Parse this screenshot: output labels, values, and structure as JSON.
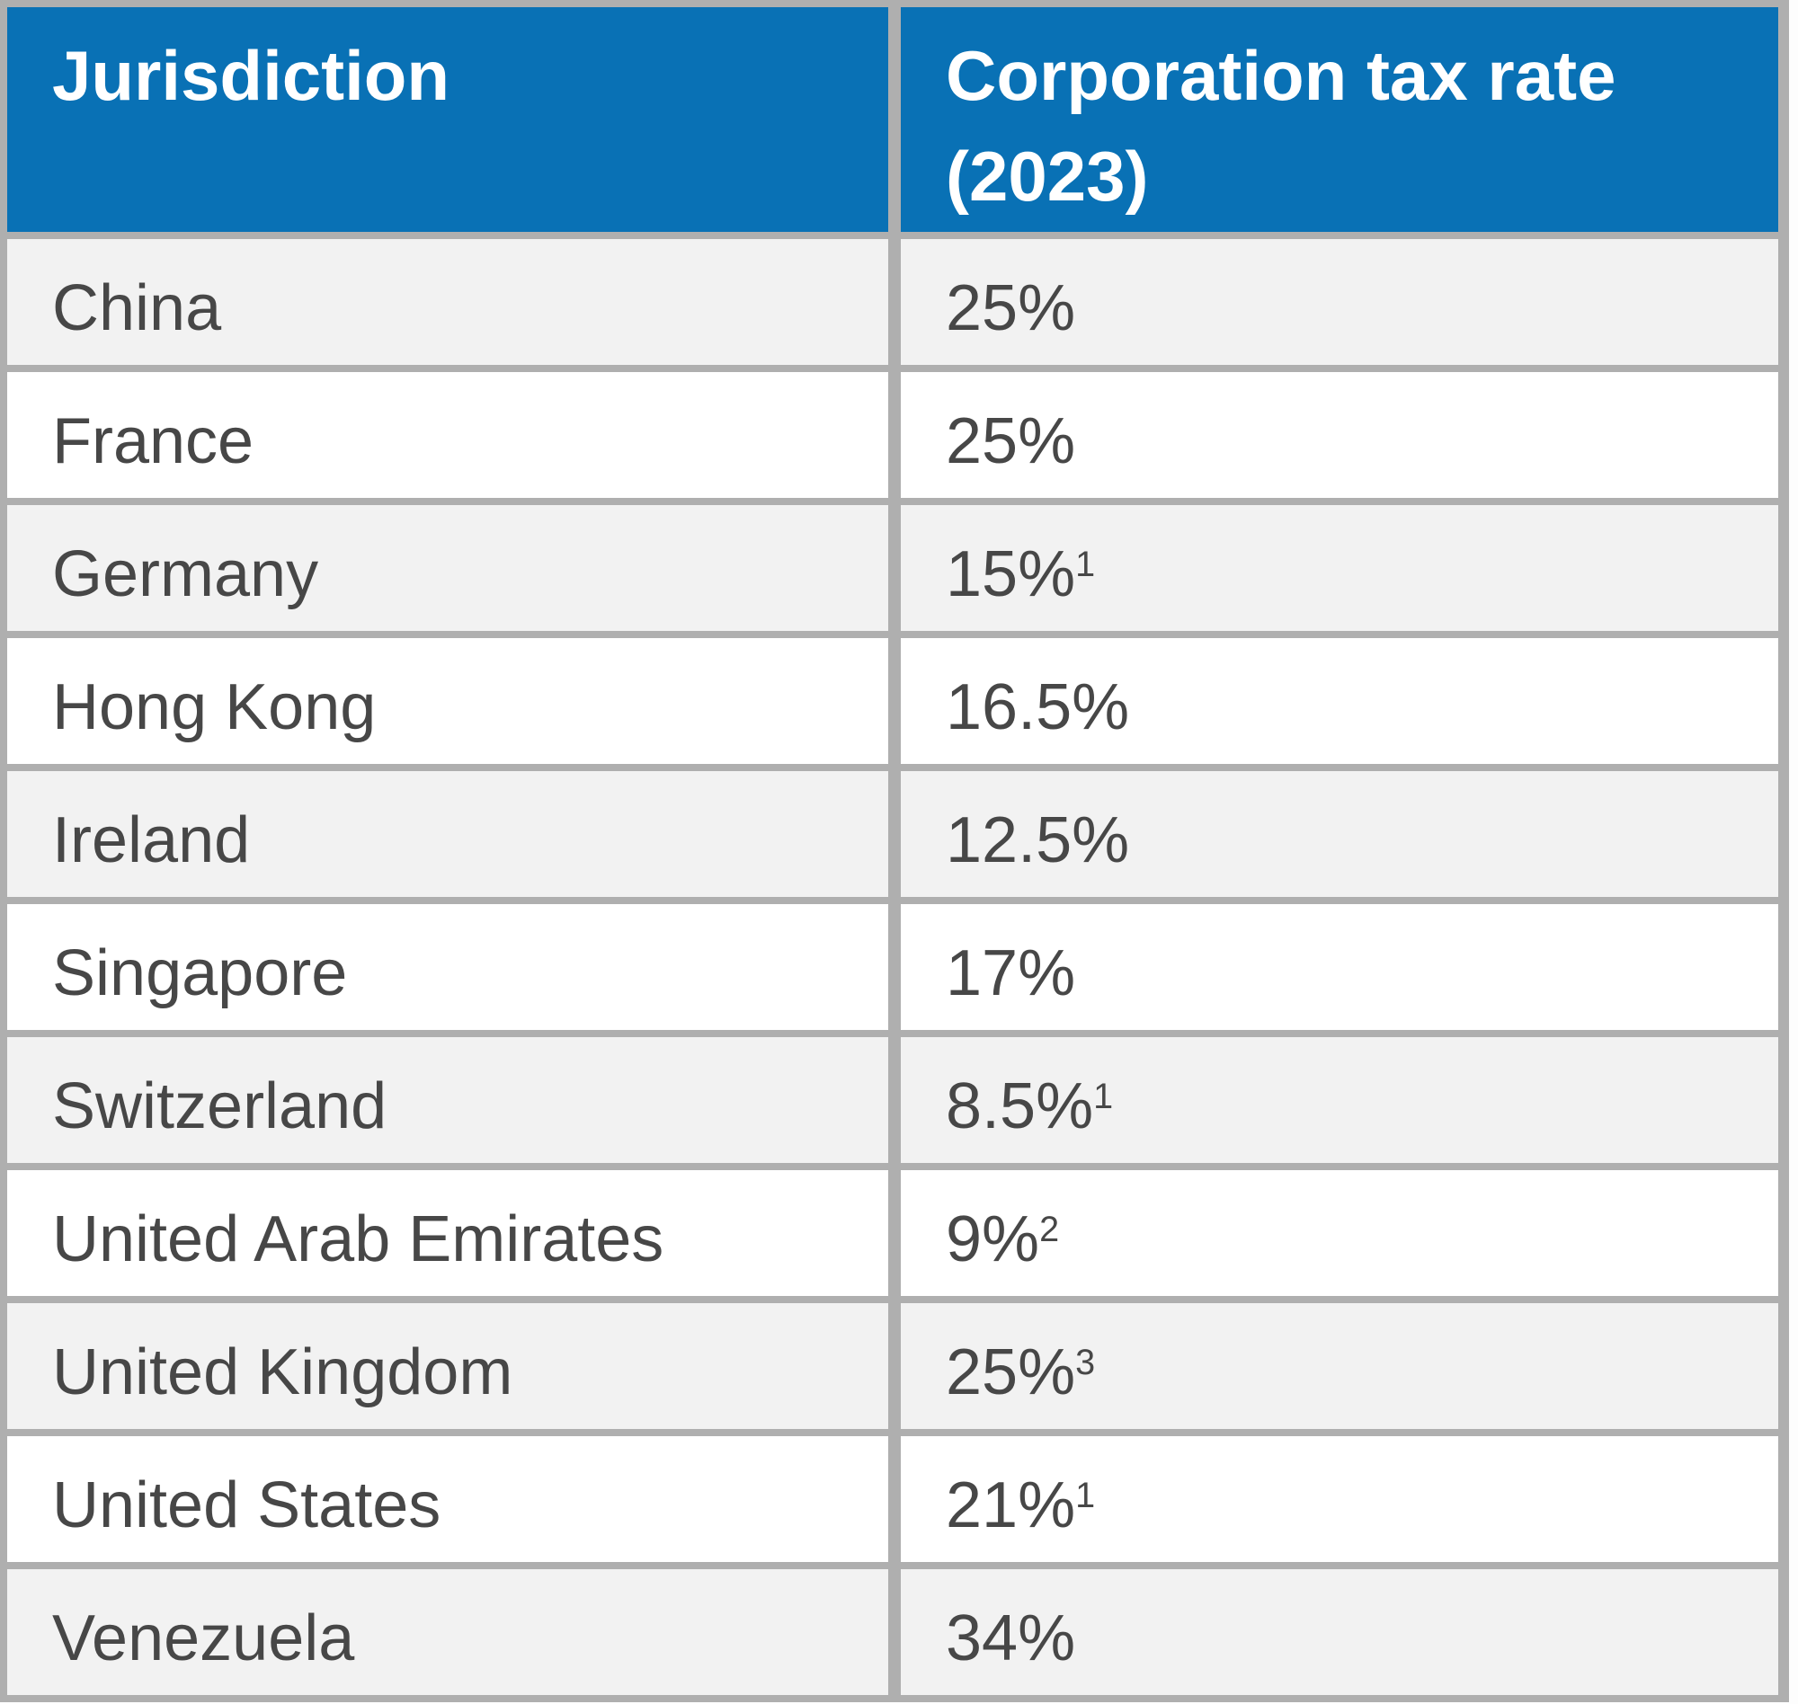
{
  "chart_data": {
    "type": "table",
    "columns": [
      {
        "label": "Jurisdiction"
      },
      {
        "label_line1": "Corporation tax rate",
        "label_line2": "(2023)"
      }
    ],
    "rows": [
      {
        "jurisdiction": "China",
        "rate": "25%",
        "sup": ""
      },
      {
        "jurisdiction": "France",
        "rate": "25%",
        "sup": ""
      },
      {
        "jurisdiction": "Germany",
        "rate": "15%",
        "sup": "1"
      },
      {
        "jurisdiction": "Hong Kong",
        "rate": "16.5%",
        "sup": ""
      },
      {
        "jurisdiction": "Ireland",
        "rate": "12.5%",
        "sup": ""
      },
      {
        "jurisdiction": "Singapore",
        "rate": "17%",
        "sup": ""
      },
      {
        "jurisdiction": "Switzerland",
        "rate": "8.5%",
        "sup": "1"
      },
      {
        "jurisdiction": "United Arab Emirates",
        "rate": "9%",
        "sup": "2"
      },
      {
        "jurisdiction": "United Kingdom",
        "rate": "25%",
        "sup": "3"
      },
      {
        "jurisdiction": "United States",
        "rate": "21%",
        "sup": "1"
      },
      {
        "jurisdiction": "Venezuela",
        "rate": "34%",
        "sup": ""
      }
    ]
  },
  "colors": {
    "header_bg": "#0971B5",
    "header_text": "#FFFFFF",
    "row_bg": "#FFFFFF",
    "row_alt_bg": "#F2F2F2",
    "border": "#AFAFAF",
    "text": "#474747"
  }
}
